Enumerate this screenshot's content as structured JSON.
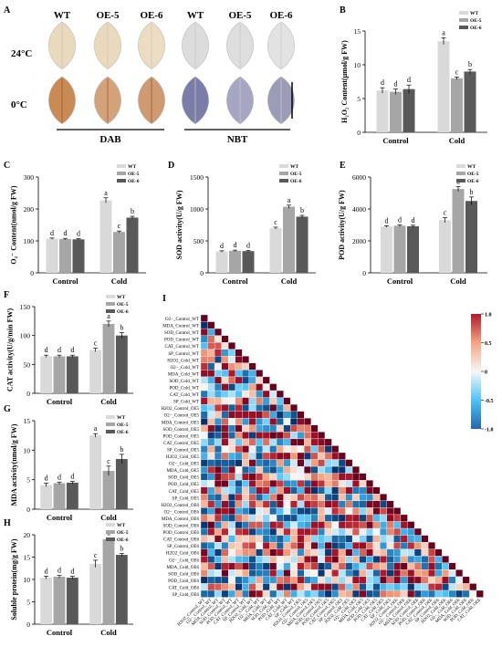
{
  "figure": {
    "panelA": {
      "letter": "A",
      "columns": [
        "WT",
        "OE-5",
        "OE-6",
        "WT",
        "OE-5",
        "OE-6"
      ],
      "rows": [
        "24°C",
        "0°C"
      ],
      "groups": [
        "DAB",
        "NBT"
      ]
    },
    "panelI_letter": "I",
    "colors": {
      "WT": "#d9d9d9",
      "OE5": "#a6a6a6",
      "OE6": "#595959"
    }
  },
  "chart_data": [
    {
      "type": "bar",
      "letter": "B",
      "ylabel": "H₂O₂ Content(μmol/g FW)",
      "categories": [
        "Control",
        "Cold"
      ],
      "ylim": [
        0,
        15
      ],
      "yticks": [
        0,
        5,
        10,
        15
      ],
      "legend": [
        "WT",
        "OE-5",
        "OE-6"
      ],
      "series": [
        {
          "name": "WT",
          "values": [
            6.2,
            13.5
          ],
          "errors": [
            0.4,
            0.5
          ],
          "letters": [
            "d",
            "a"
          ]
        },
        {
          "name": "OE-5",
          "values": [
            6.0,
            8.0
          ],
          "errors": [
            0.4,
            0.2
          ],
          "letters": [
            "d",
            "c"
          ]
        },
        {
          "name": "OE-6",
          "values": [
            6.4,
            9.0
          ],
          "errors": [
            0.6,
            0.3
          ],
          "letters": [
            "d",
            "b"
          ]
        }
      ]
    },
    {
      "type": "bar",
      "letter": "C",
      "ylabel": "O₂⁻ Content(nmol/g FW)",
      "categories": [
        "Control",
        "Cold"
      ],
      "ylim": [
        0,
        300
      ],
      "yticks": [
        0,
        100,
        200,
        300
      ],
      "legend": [
        "WT",
        "OE-5",
        "OE-6"
      ],
      "series": [
        {
          "name": "WT",
          "values": [
            107,
            227
          ],
          "errors": [
            2,
            8
          ],
          "letters": [
            "d",
            "a"
          ]
        },
        {
          "name": "OE-5",
          "values": [
            106,
            128
          ],
          "errors": [
            2,
            3
          ],
          "letters": [
            "d",
            "c"
          ]
        },
        {
          "name": "OE-6",
          "values": [
            105,
            173
          ],
          "errors": [
            2,
            4
          ],
          "letters": [
            "d",
            "b"
          ]
        }
      ]
    },
    {
      "type": "bar",
      "letter": "D",
      "ylabel": "SOD activity(U/g FW)",
      "categories": [
        "Control",
        "Cold"
      ],
      "ylim": [
        0,
        1500
      ],
      "yticks": [
        0,
        500,
        1000,
        1500
      ],
      "legend": [
        "WT",
        "OE-5",
        "OE-6"
      ],
      "series": [
        {
          "name": "WT",
          "values": [
            335,
            700
          ],
          "errors": [
            10,
            15
          ],
          "letters": [
            "d",
            "c"
          ]
        },
        {
          "name": "OE-5",
          "values": [
            345,
            1035
          ],
          "errors": [
            10,
            25
          ],
          "letters": [
            "d",
            "a"
          ]
        },
        {
          "name": "OE-6",
          "values": [
            340,
            880
          ],
          "errors": [
            10,
            20
          ],
          "letters": [
            "d",
            "b"
          ]
        }
      ]
    },
    {
      "type": "bar",
      "letter": "E",
      "ylabel": "POD activity(U/g FW)",
      "categories": [
        "Control",
        "Cold"
      ],
      "ylim": [
        0,
        6000
      ],
      "yticks": [
        0,
        2000,
        4000,
        6000
      ],
      "legend": [
        "WT",
        "OE-5",
        "OE-6"
      ],
      "series": [
        {
          "name": "WT",
          "values": [
            2900,
            3300
          ],
          "errors": [
            50,
            150
          ],
          "letters": [
            "d",
            "c"
          ]
        },
        {
          "name": "OE-5",
          "values": [
            2950,
            5250
          ],
          "errors": [
            60,
            150
          ],
          "letters": [
            "d",
            "a"
          ]
        },
        {
          "name": "OE-6",
          "values": [
            2920,
            4500
          ],
          "errors": [
            60,
            250
          ],
          "letters": [
            "d",
            "b"
          ]
        }
      ]
    },
    {
      "type": "bar",
      "letter": "F",
      "ylabel": "CAT activity(U/g/min FW)",
      "categories": [
        "Control",
        "Cold"
      ],
      "ylim": [
        0,
        150
      ],
      "yticks": [
        0,
        50,
        100,
        150
      ],
      "legend": [
        "WT",
        "OE-5",
        "OE-6"
      ],
      "series": [
        {
          "name": "WT",
          "values": [
            64,
            75
          ],
          "errors": [
            2,
            3
          ],
          "letters": [
            "d",
            "c"
          ]
        },
        {
          "name": "OE-5",
          "values": [
            64,
            120
          ],
          "errors": [
            2,
            5
          ],
          "letters": [
            "d",
            "a"
          ]
        },
        {
          "name": "OE-6",
          "values": [
            64,
            100
          ],
          "errors": [
            2,
            5
          ],
          "letters": [
            "d",
            "b"
          ]
        }
      ]
    },
    {
      "type": "bar",
      "letter": "G",
      "ylabel": "MDA activity(nmol/g FW)",
      "categories": [
        "Control",
        "Cold"
      ],
      "ylim": [
        0,
        15
      ],
      "yticks": [
        0,
        5,
        10,
        15
      ],
      "legend": [
        "WT",
        "OE-5",
        "OE-6"
      ],
      "series": [
        {
          "name": "WT",
          "values": [
            4.1,
            12.5
          ],
          "errors": [
            0.3,
            0.3
          ],
          "letters": [
            "d",
            "a"
          ]
        },
        {
          "name": "OE-5",
          "values": [
            4.4,
            6.5
          ],
          "errors": [
            0.2,
            0.8
          ],
          "letters": [
            "d",
            "c"
          ]
        },
        {
          "name": "OE-6",
          "values": [
            4.5,
            8.5
          ],
          "errors": [
            0.2,
            0.8
          ],
          "letters": [
            "d",
            "b"
          ]
        }
      ]
    },
    {
      "type": "bar",
      "letter": "H",
      "ylabel": "Soluble protein(mg/g FW)",
      "categories": [
        "Control",
        "Cold"
      ],
      "ylim": [
        0,
        20
      ],
      "yticks": [
        0,
        5,
        10,
        15,
        20
      ],
      "legend": [
        "WT",
        "OE-5",
        "OE-6"
      ],
      "series": [
        {
          "name": "WT",
          "values": [
            10.4,
            13.5
          ],
          "errors": [
            0.3,
            0.8
          ],
          "letters": [
            "d",
            "c"
          ]
        },
        {
          "name": "OE-5",
          "values": [
            10.6,
            19.0
          ],
          "errors": [
            0.3,
            0.3
          ],
          "letters": [
            "d",
            "a"
          ]
        },
        {
          "name": "OE-6",
          "values": [
            10.4,
            15.5
          ],
          "errors": [
            0.3,
            0.3
          ],
          "letters": [
            "d",
            "b"
          ]
        }
      ]
    },
    {
      "type": "heatmap",
      "letter": "I",
      "labels": [
        "O2−_Control_WT",
        "MDA_Control_WT",
        "SOD_Control_WT",
        "POD_Control_WT",
        "CAT_Control_WT",
        "SP_Control_WT",
        "H2O2_Cold_WT",
        "O2−_Cold_WT",
        "MDA_Cold_WT",
        "SOD_Cold_WT",
        "POD_Cold_WT",
        "CAT_Cold_WT",
        "SP_Cold_WT",
        "H2O2_Control_OE5",
        "O2−_Control_OE5",
        "MDA_Control_OE5",
        "SOD_Control_OE5",
        "POD_Control_OE5",
        "CAT_Control_OE5",
        "SP_Control_OE5",
        "H2O2_Cold_OE5",
        "O2−_Cold_OE5",
        "MDA_Cold_OE5",
        "SOD_Cold_OE5",
        "POD_Cold_OE5",
        "CAT_Cold_OE5",
        "SP_Cold_OE5",
        "H2O2_Control_OE6",
        "O2−_Control_OE6",
        "MDA_Control_OE6",
        "SOD_Control_OE6",
        "POD_Control_OE6",
        "CAT_Control_OE6",
        "SP_Control_OE6",
        "H2O2_Cold_OE6",
        "O2−_Cold_OE6",
        "MDA_Cold_OE6",
        "SOD_Cold_OE6",
        "POD_Cold_OE6",
        "CAT_Cold_OE6",
        "SP_Cold_OE6"
      ],
      "xlabels": [
        "H2O2_Control_WT",
        "O2−_Control_WT",
        "MDA_Control_WT",
        "SOD_Control_WT",
        "POD_Control_WT",
        "CAT_Control_WT",
        "SP_Control_WT",
        "H2O2_Cold_WT",
        "O2−_Cold_WT",
        "MDA_Cold_WT",
        "SOD_Cold_WT",
        "POD_Cold_WT",
        "CAT_Cold_WT",
        "SP_Cold_WT",
        "H2O2_Control_OE5",
        "O2−_Control_OE5",
        "MDA_Control_OE5",
        "SOD_Control_OE5",
        "POD_Control_OE5",
        "CAT_Control_OE5",
        "SP_Control_OE5",
        "H2O2_Cold_OE5",
        "O2−_Cold_OE5",
        "MDA_Cold_OE5",
        "SOD_Cold_OE5",
        "POD_Cold_OE5",
        "CAT_Cold_OE5",
        "SP_Cold_OE5",
        "H2O2_Control_OE6",
        "O2−_Control_OE6",
        "MDA_Control_OE6",
        "SOD_Control_OE6",
        "POD_Control_OE6",
        "CAT_Control_OE6",
        "SP_Control_OE6",
        "H2O2_Cold_OE6",
        "O2−_Cold_OE6",
        "MDA_Cold_OE6",
        "SOD_Cold_OE6",
        "POD_Cold_OE6",
        "CAT_Cold_OE6"
      ],
      "colorbar_ticks": [
        "1.0",
        "0.5",
        "0",
        "-0.5",
        "-1.0"
      ],
      "colorscale": [
        "#08306b",
        "#1f78b4",
        "#4fc3f7",
        "#f7f7f7",
        "#f4a582",
        "#b2182b",
        "#67001f"
      ]
    }
  ]
}
